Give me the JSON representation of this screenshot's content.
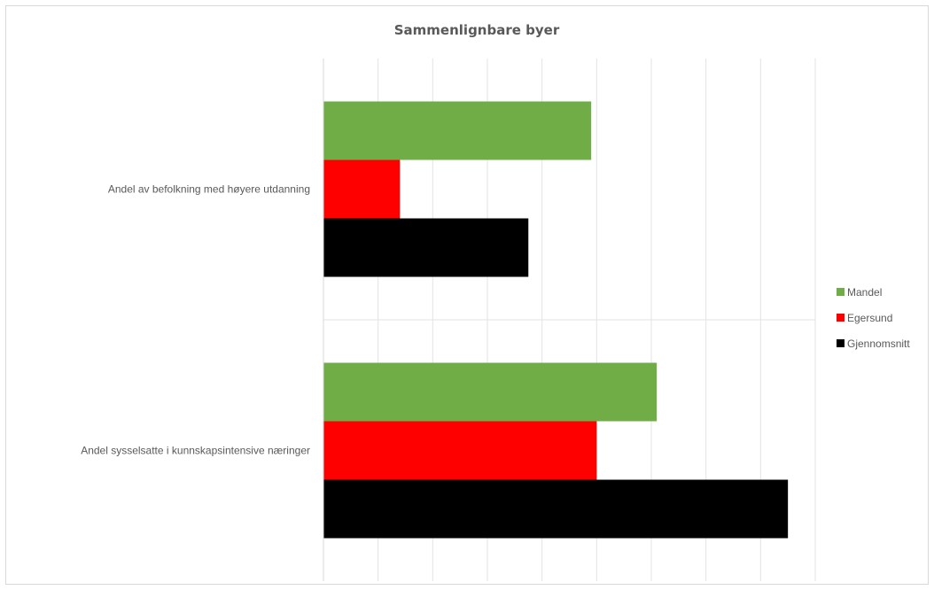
{
  "chart_data": {
    "type": "bar",
    "orientation": "horizontal",
    "title": "Sammenlignbare byer",
    "xlabel": "",
    "ylabel": "",
    "categories": [
      "Andel av befolkning med høyere utdanning",
      "Andel sysselsatte i kunnskapsintensive næringer"
    ],
    "series": [
      {
        "name": "Mandel",
        "color": "#70ad47",
        "values": [
          4.9,
          6.1
        ]
      },
      {
        "name": "Egersund",
        "color": "#ff0000",
        "values": [
          1.4,
          5.0
        ]
      },
      {
        "name": "Gjennomsnitt",
        "color": "#000000",
        "values": [
          3.75,
          8.5
        ]
      }
    ],
    "xlim": [
      0,
      9
    ],
    "grid": true,
    "legend_position": "right"
  }
}
